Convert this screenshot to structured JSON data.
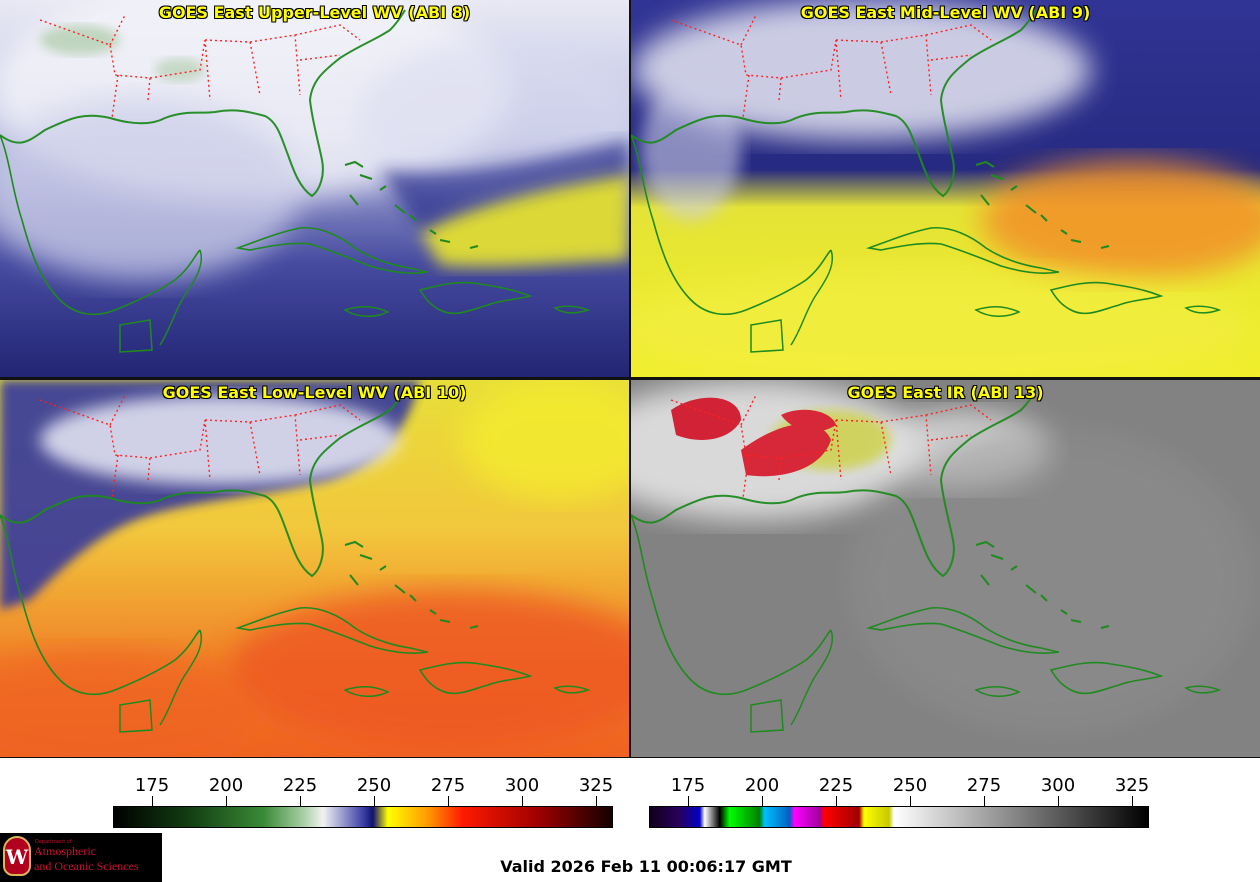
{
  "panels": {
    "upper": {
      "title": "GOES East Upper-Level WV (ABI 8)"
    },
    "mid": {
      "title": "GOES East Mid-Level WV (ABI 9)"
    },
    "low": {
      "title": "GOES East Low-Level WV (ABI 10)"
    },
    "ir": {
      "title": "GOES East IR (ABI 13)"
    }
  },
  "colorbars": {
    "wv": {
      "ticks": [
        "175",
        "200",
        "225",
        "250",
        "275",
        "300",
        "325"
      ],
      "range": [
        162,
        330
      ]
    },
    "ir": {
      "ticks": [
        "175",
        "200",
        "225",
        "250",
        "275",
        "300",
        "325"
      ],
      "range": [
        162,
        330
      ]
    }
  },
  "logo": {
    "line1": "Department of",
    "line2": "Atmospheric",
    "line3": "and Oceanic Sciences"
  },
  "valid_time": "Valid 2026 Feb 11 00:06:17 GMT",
  "colors": {
    "coastline": "#1f8a1f",
    "state_borders": "#ff2020",
    "title_text": "#ffff00"
  }
}
